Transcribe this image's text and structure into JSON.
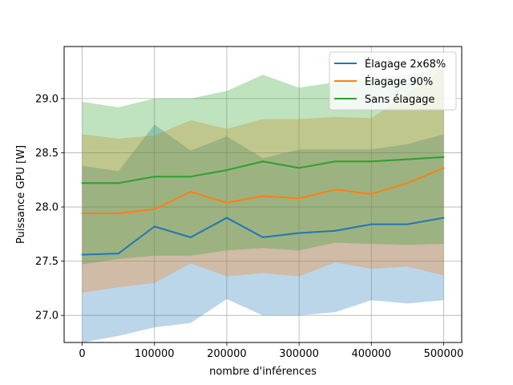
{
  "chart_data": {
    "type": "line",
    "xlabel": "nombre d'inférences",
    "ylabel": "Puissance GPU [W]",
    "xlim": [
      -25000,
      525000
    ],
    "ylim": [
      26.75,
      29.48
    ],
    "x_ticks": [
      0,
      100000,
      200000,
      300000,
      400000,
      500000
    ],
    "y_ticks": [
      27.0,
      27.5,
      28.0,
      28.5,
      29.0
    ],
    "grid": true,
    "legend_position": "top-right",
    "x": [
      0,
      50000,
      100000,
      150000,
      200000,
      250000,
      300000,
      350000,
      400000,
      450000,
      500000
    ],
    "series": [
      {
        "name": "Élagage 2x68%",
        "color": "#1f77b4",
        "values": [
          27.56,
          27.57,
          27.82,
          27.72,
          27.9,
          27.72,
          27.76,
          27.78,
          27.84,
          27.84,
          27.9
        ],
        "upper": [
          28.38,
          28.33,
          28.76,
          28.52,
          28.65,
          28.45,
          28.53,
          28.53,
          28.53,
          28.58,
          28.67
        ],
        "lower": [
          26.75,
          26.81,
          26.89,
          26.93,
          27.15,
          27.0,
          27.0,
          27.03,
          27.14,
          27.11,
          27.14
        ]
      },
      {
        "name": "Élagage 90%",
        "color": "#ff7f0e",
        "values": [
          27.94,
          27.94,
          27.98,
          28.14,
          28.04,
          28.1,
          28.08,
          28.16,
          28.12,
          28.22,
          28.36
        ],
        "upper": [
          28.67,
          28.63,
          28.66,
          28.8,
          28.72,
          28.81,
          28.81,
          28.83,
          28.82,
          29.04,
          29.28
        ],
        "lower": [
          27.21,
          27.26,
          27.3,
          27.48,
          27.36,
          27.39,
          27.36,
          27.49,
          27.43,
          27.45,
          27.37
        ]
      },
      {
        "name": "Sans élagage",
        "color": "#2ca02c",
        "values": [
          28.22,
          28.22,
          28.28,
          28.28,
          28.34,
          28.42,
          28.36,
          28.42,
          28.42,
          28.44,
          28.46
        ],
        "upper": [
          28.97,
          28.92,
          29.0,
          29.0,
          29.07,
          29.22,
          29.1,
          29.15,
          29.18,
          29.22,
          29.28
        ],
        "lower": [
          27.47,
          27.52,
          27.55,
          27.55,
          27.6,
          27.62,
          27.6,
          27.67,
          27.66,
          27.65,
          27.66
        ]
      }
    ]
  }
}
